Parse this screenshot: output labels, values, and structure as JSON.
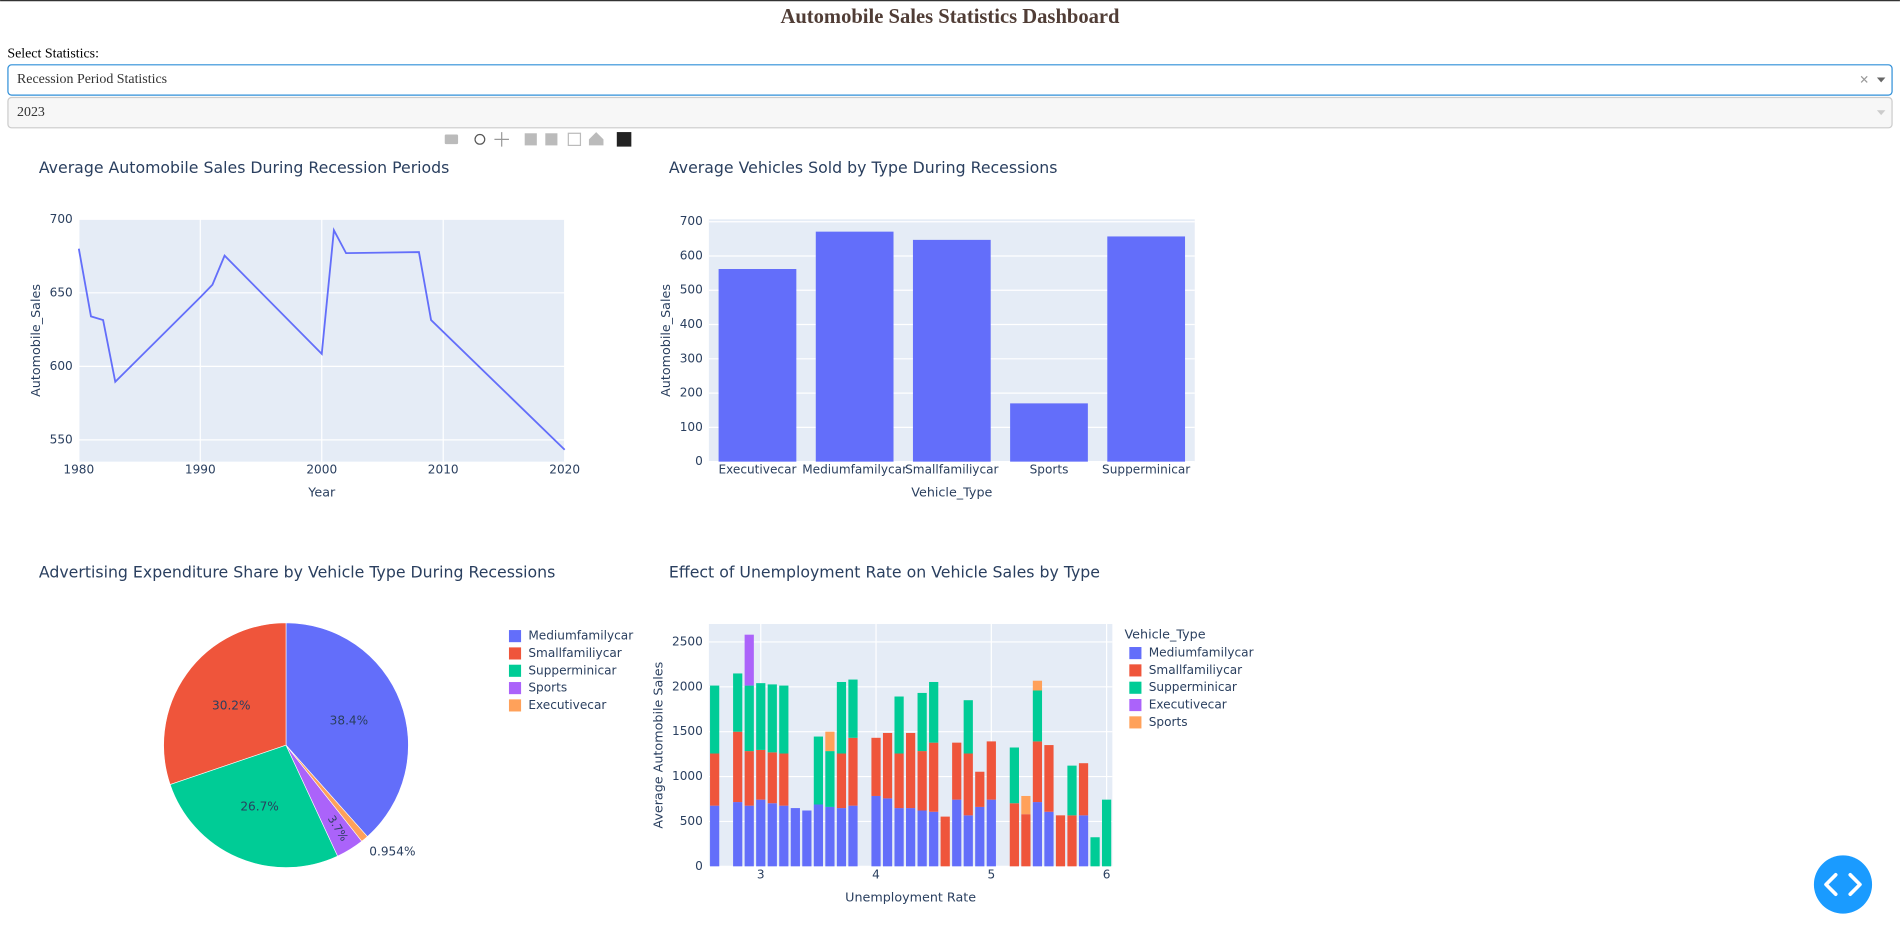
{
  "header": {
    "title": "Automobile Sales Statistics Dashboard"
  },
  "controls": {
    "label": "Select Statistics:",
    "statistic": "Recession Period Statistics",
    "year": "2023"
  },
  "chart_data": [
    {
      "type": "line",
      "title": "Average Automobile Sales During Recession Periods",
      "x_label": "Year",
      "y_label": "Automobile_Sales",
      "color": "#636efa",
      "grid": true,
      "x": [
        1980,
        1981,
        1982,
        1983,
        1990,
        1991,
        1992,
        2000,
        2001,
        2002,
        2008,
        2009,
        2020
      ],
      "values": [
        680,
        634,
        631.5,
        589.5,
        647,
        655.5,
        675.3,
        608.5,
        692.6,
        677,
        677.7,
        631.5,
        543.3
      ],
      "xlim": [
        1980,
        2020
      ],
      "xticks": [
        1980,
        1990,
        2000,
        2010,
        2020
      ],
      "ylim": [
        535.2,
        700
      ],
      "yticks": [
        550,
        600,
        650,
        700
      ]
    },
    {
      "type": "bar",
      "title": "Average Vehicles Sold by Type During Recessions",
      "x_label": "Vehicle_Type",
      "y_label": "Automobile_Sales",
      "color": "#636efa",
      "grid": true,
      "categories": [
        "Executivecar",
        "Mediumfamilycar",
        "Smallfamiliycar",
        "Sports",
        "Supperminicar"
      ],
      "values": [
        562,
        671,
        647,
        170,
        657
      ],
      "ylim": [
        0,
        707
      ],
      "yticks": [
        0,
        100,
        200,
        300,
        400,
        500,
        600,
        700
      ]
    },
    {
      "type": "pie",
      "title": "Advertising Expenditure Share by Vehicle Type During Recessions",
      "direction": "counterclockwise",
      "categories": [
        "Mediumfamilycar",
        "Smallfamiliycar",
        "Supperminicar",
        "Sports",
        "Executivecar"
      ],
      "values": [
        38.4,
        30.2,
        26.7,
        3.7,
        0.954
      ],
      "value_labels": [
        "38.4%",
        "30.2%",
        "26.7%",
        "3.7%",
        "0.954%"
      ],
      "colors": [
        "#636efa",
        "#ef553b",
        "#00cc96",
        "#ab63fa",
        "#ffa15a"
      ]
    },
    {
      "type": "bar",
      "barmode": "stack",
      "title": "Effect of Unemployment Rate on Vehicle Sales by Type",
      "x_label": "Unemployment Rate",
      "y_label": "Average Automobile Sales",
      "legend_title": "Vehicle_Type",
      "grid": true,
      "x": [
        2.6,
        2.8,
        2.9,
        3.0,
        3.1,
        3.2,
        3.3,
        3.4,
        3.5,
        3.6,
        3.7,
        3.8,
        4.0,
        4.1,
        4.2,
        4.3,
        4.4,
        4.5,
        4.6,
        4.7,
        4.8,
        4.9,
        5.0,
        5.2,
        5.3,
        5.4,
        5.5,
        5.6,
        5.7,
        5.8,
        5.9,
        6.0
      ],
      "series": [
        {
          "name": "Mediumfamilycar",
          "color": "#636efa",
          "values": [
            676,
            716,
            676,
            743,
            703,
            676,
            649,
            622,
            689,
            662,
            649,
            676,
            784,
            757,
            649,
            649,
            622,
            608,
            null,
            743,
            568,
            662,
            743,
            null,
            null,
            716,
            608,
            null,
            null,
            568,
            null,
            null
          ]
        },
        {
          "name": "Smallfamiliycar",
          "color": "#ef553b",
          "values": [
            581,
            784,
            608,
            554,
            567,
            581,
            null,
            null,
            null,
            null,
            608,
            756,
            648,
            729,
            608,
            837,
            662,
            770,
            554,
            635,
            689,
            392,
            649,
            703,
            581,
            676,
            743,
            568,
            568,
            581,
            null,
            null
          ]
        },
        {
          "name": "Supperminicar",
          "color": "#00cc96",
          "values": [
            757,
            649,
            730,
            744,
            757,
            757,
            null,
            null,
            757,
            622,
            797,
            649,
            null,
            null,
            635,
            null,
            648,
            676,
            null,
            null,
            594,
            null,
            null,
            621,
            null,
            567,
            null,
            null,
            554,
            null,
            324,
            743
          ]
        },
        {
          "name": "Executivecar",
          "color": "#ab63fa",
          "values": [
            null,
            null,
            567,
            null,
            null,
            null,
            null,
            null,
            null,
            null,
            null,
            null,
            null,
            null,
            null,
            null,
            null,
            null,
            null,
            null,
            null,
            null,
            null,
            null,
            null,
            null,
            null,
            null,
            null,
            null,
            null,
            null
          ]
        },
        {
          "name": "Sports",
          "color": "#ffa15a",
          "values": [
            null,
            null,
            null,
            null,
            null,
            null,
            null,
            null,
            null,
            216,
            null,
            null,
            null,
            null,
            null,
            null,
            null,
            null,
            null,
            null,
            null,
            null,
            null,
            null,
            203,
            109,
            null,
            null,
            null,
            null,
            null,
            null
          ]
        }
      ],
      "xlim": [
        2.55,
        6.05
      ],
      "xticks": [
        3,
        4,
        5,
        6
      ],
      "ylim": [
        0,
        2700
      ],
      "yticks": [
        0,
        500,
        1000,
        1500,
        2000,
        2500
      ]
    }
  ]
}
